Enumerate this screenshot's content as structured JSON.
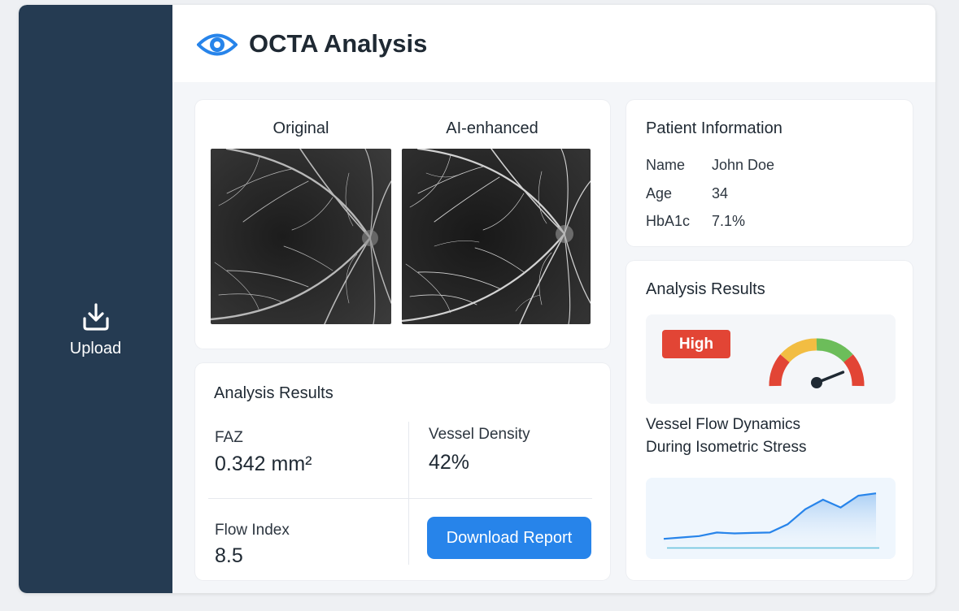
{
  "sidebar": {
    "upload_label": "Upload"
  },
  "header": {
    "title": "OCTA Analysis"
  },
  "images": {
    "original_label": "Original",
    "enhanced_label": "AI-enhanced"
  },
  "analysis": {
    "title": "Analysis Results",
    "faz_label": "FAZ",
    "faz_value": "0.342 mm²",
    "vessel_density_label": "Vessel Density",
    "vessel_density_value": "42%",
    "flow_index_label": "Flow Index",
    "flow_index_value": "8.5",
    "download_label": "Download Report"
  },
  "patient": {
    "title": "Patient Information",
    "fields": [
      {
        "label": "Name",
        "value": "John Doe"
      },
      {
        "label": "Age",
        "value": "34"
      },
      {
        "label": "HbA1c",
        "value": "7.1%"
      }
    ]
  },
  "risk": {
    "title": "Analysis Results",
    "badge": "High",
    "gauge_level": 0.8,
    "colors": {
      "red": "#e24535",
      "yellow": "#f2bd42",
      "green": "#6cbd5a",
      "accent": "#2784ea"
    }
  },
  "flow_chart": {
    "title_line1": "Vessel Flow Dynamics",
    "title_line2": "During Isometric Stress",
    "chart_data": {
      "type": "area",
      "x": [
        0,
        1,
        2,
        3,
        4,
        5,
        6,
        7,
        8,
        9,
        10,
        11,
        12
      ],
      "series": [
        {
          "values": [
            2,
            2.3,
            2.6,
            3.4,
            3.2,
            3.3,
            3.4,
            5.2,
            8.5,
            10.6,
            8.9,
            11.5,
            12.0
          ]
        },
        {
          "values": [
            0,
            0,
            0,
            0,
            0,
            0,
            0,
            0,
            0,
            0,
            0,
            0,
            0
          ]
        }
      ],
      "ylim": [
        -1,
        14
      ]
    }
  }
}
